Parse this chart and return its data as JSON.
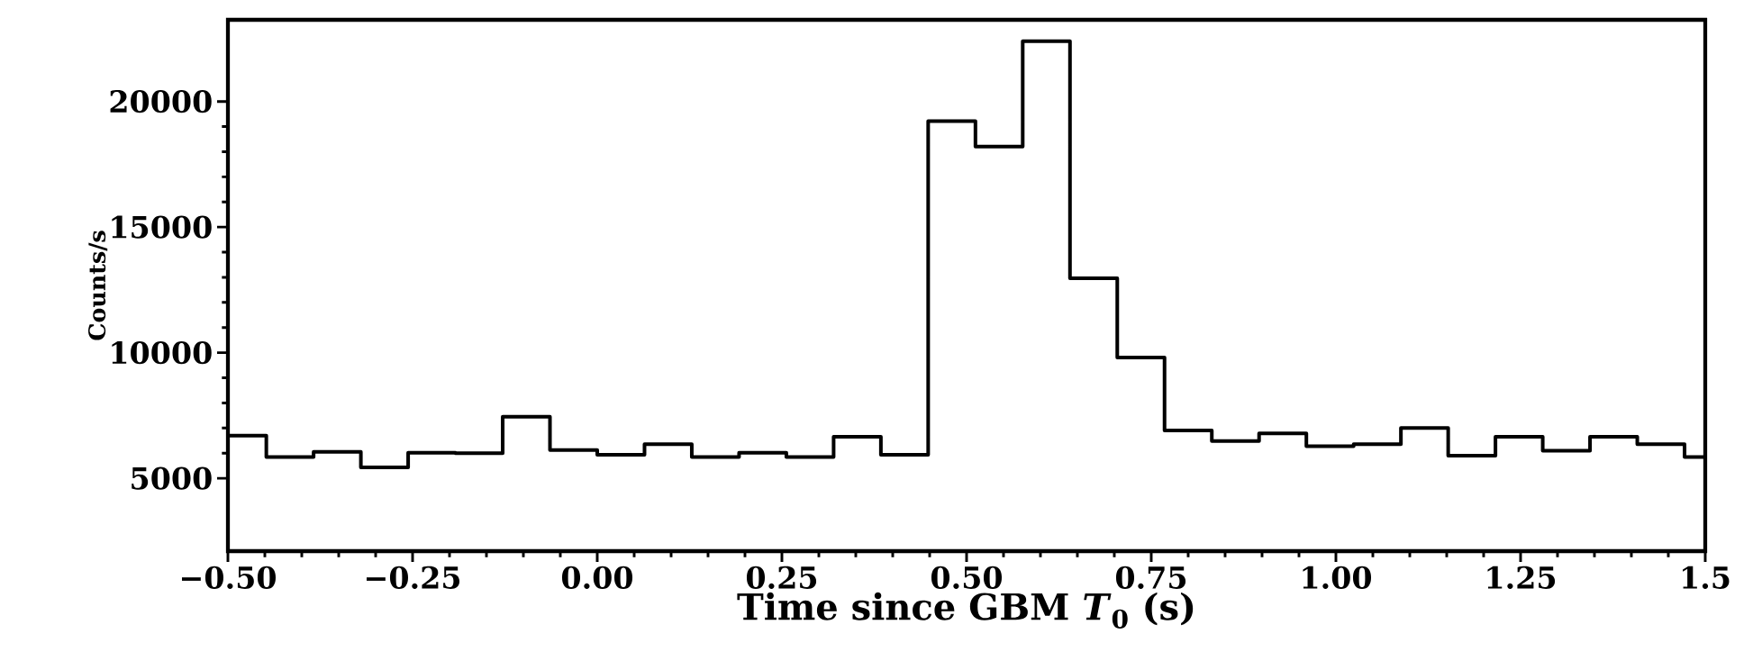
{
  "chart_data": {
    "type": "histogram",
    "xlabel": "Time since GBM *T*$_{0}$ (s)",
    "ylabel": "Counts/s",
    "bins": [
      -0.5,
      -0.448,
      -0.384,
      -0.32,
      -0.256,
      -0.192,
      -0.128,
      -0.064,
      0.0,
      0.064,
      0.128,
      0.192,
      0.256,
      0.32,
      0.384,
      0.448,
      0.512,
      0.576,
      0.64,
      0.704,
      0.768,
      0.832,
      0.896,
      0.96,
      1.024,
      1.088,
      1.152,
      1.216,
      1.28,
      1.344,
      1.408,
      1.472,
      1.5
    ],
    "values": [
      6700,
      5850,
      6050,
      5430,
      6020,
      6000,
      7450,
      6120,
      5940,
      6360,
      5850,
      6020,
      5850,
      6650,
      5940,
      19220,
      18200,
      22400,
      12960,
      9810,
      6900,
      6480,
      6790,
      6280,
      6360,
      7000,
      5900,
      6650,
      6100,
      6650,
      6360,
      5850
    ],
    "color": "#000000",
    "xlim": [
      -0.5,
      1.5
    ],
    "ylim": [
      2100,
      23250
    ],
    "xticks": [
      {
        "value": -0.5,
        "label": "−0.50"
      },
      {
        "value": -0.25,
        "label": "−0.25"
      },
      {
        "value": 0.0,
        "label": "0.00"
      },
      {
        "value": 0.25,
        "label": "0.25"
      },
      {
        "value": 0.5,
        "label": "0.50"
      },
      {
        "value": 0.75,
        "label": "0.75"
      },
      {
        "value": 1.0,
        "label": "1.00"
      },
      {
        "value": 1.25,
        "label": "1.25"
      },
      {
        "value": 1.5,
        "label": "1.5"
      }
    ],
    "yticks": [
      5000,
      10000,
      15000,
      20000
    ],
    "grid": false
  }
}
